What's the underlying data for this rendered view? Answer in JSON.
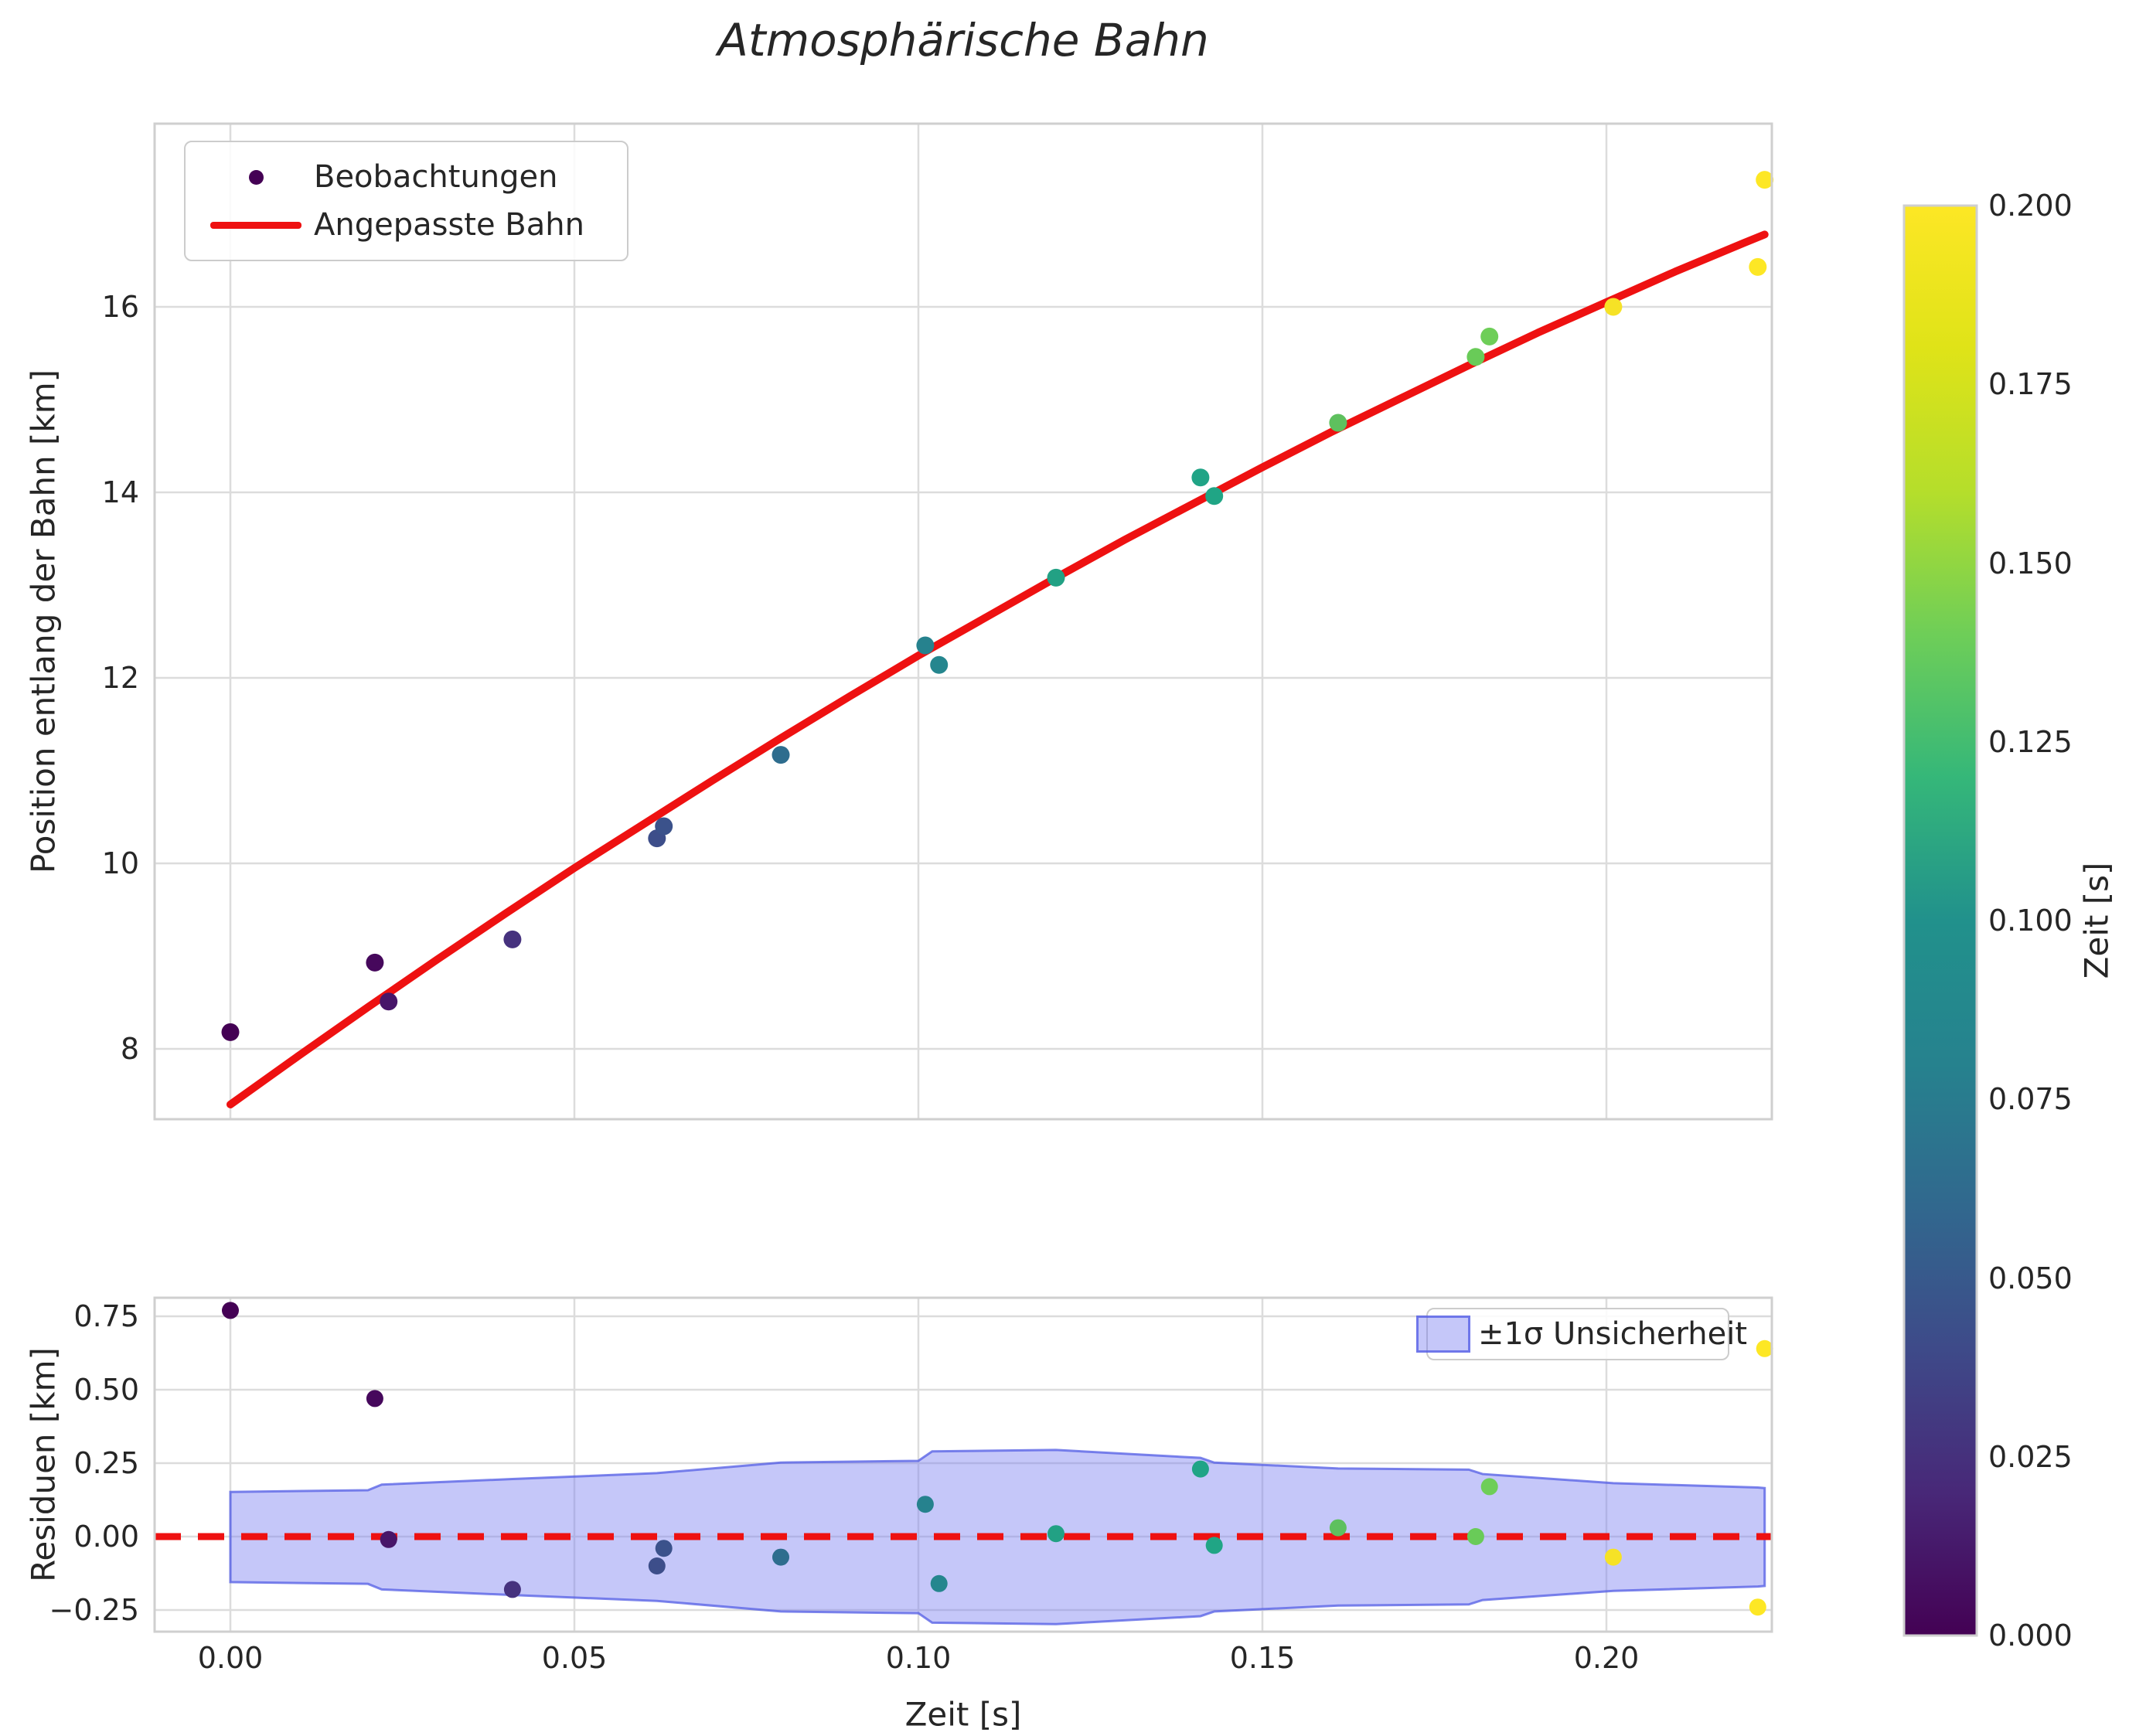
{
  "title": "Atmosphärische Bahn",
  "colors": {
    "fit_red": "#ee1111",
    "band_fill": "rgba(116,122,240,0.42)",
    "band_edge": "rgba(82,92,228,0.75)",
    "grid": "#dcdcdc",
    "spine": "#cfcfcf",
    "text": "#262626",
    "legend_marker": "#440154"
  },
  "main_plot": {
    "ylabel": "Position entlang der Bahn [km]",
    "ytick_labels": [
      "16",
      "14",
      "12",
      "10",
      "8"
    ],
    "ytick_values": [
      16,
      14,
      12,
      10,
      8
    ],
    "legend": {
      "observations": "Beobachtungen",
      "fitted": "Angepasste Bahn"
    }
  },
  "residual_plot": {
    "ylabel": "Residuen [km]",
    "xlabel": "Zeit [s]",
    "ytick_labels": [
      "0.75",
      "0.50",
      "0.25",
      "0.00",
      "−0.25"
    ],
    "ytick_values": [
      0.75,
      0.5,
      0.25,
      0.0,
      -0.25
    ],
    "xtick_labels": [
      "0.00",
      "0.05",
      "0.10",
      "0.15",
      "0.20"
    ],
    "xtick_values": [
      0.0,
      0.05,
      0.1,
      0.15,
      0.2
    ],
    "legend_label": "±1σ Unsicherheit"
  },
  "colorbar": {
    "label": "Zeit [s]",
    "tick_labels": [
      "0.000",
      "0.025",
      "0.050",
      "0.075",
      "0.100",
      "0.125",
      "0.150",
      "0.175",
      "0.200"
    ],
    "tick_values": [
      0.0,
      0.025,
      0.05,
      0.075,
      0.1,
      0.125,
      0.15,
      0.175,
      0.2
    ],
    "range": [
      0.0,
      0.2
    ],
    "colormap": "viridis",
    "gradient_stops": [
      [
        0.0,
        "#440154"
      ],
      [
        0.1,
        "#482878"
      ],
      [
        0.2,
        "#3e4a89"
      ],
      [
        0.3,
        "#31688e"
      ],
      [
        0.4,
        "#26828e"
      ],
      [
        0.5,
        "#21918c"
      ],
      [
        0.6,
        "#35b779"
      ],
      [
        0.7,
        "#6ece58"
      ],
      [
        0.8,
        "#b5de2b"
      ],
      [
        0.9,
        "#dfe318"
      ],
      [
        1.0,
        "#fde725"
      ]
    ]
  },
  "chart_data": [
    {
      "type": "scatter",
      "title": "Atmosphärische Bahn",
      "xlabel": "Zeit [s]",
      "ylabel": "Position entlang der Bahn [km]",
      "xlim": [
        -0.011,
        0.224
      ],
      "ylim": [
        7.22,
        17.98
      ],
      "grid": true,
      "legend_position": "upper left",
      "series": [
        {
          "name": "Beobachtungen",
          "type": "scatter",
          "color_by": "Zeit [s]",
          "colormap": "viridis",
          "points": [
            {
              "t": 0.0,
              "position_km": 8.18,
              "color": "#440154"
            },
            {
              "t": 0.021,
              "position_km": 8.93,
              "color": "#46085c"
            },
            {
              "t": 0.023,
              "position_km": 8.51,
              "color": "#471669"
            },
            {
              "t": 0.041,
              "position_km": 9.18,
              "color": "#46327e"
            },
            {
              "t": 0.062,
              "position_km": 10.27,
              "color": "#3d4e8a"
            },
            {
              "t": 0.063,
              "position_km": 10.4,
              "color": "#3b528b"
            },
            {
              "t": 0.08,
              "position_km": 11.17,
              "color": "#2e6d8e"
            },
            {
              "t": 0.101,
              "position_km": 12.35,
              "color": "#26828e"
            },
            {
              "t": 0.103,
              "position_km": 12.14,
              "color": "#25868e"
            },
            {
              "t": 0.12,
              "position_km": 13.08,
              "color": "#22a184"
            },
            {
              "t": 0.141,
              "position_km": 14.16,
              "color": "#20a486"
            },
            {
              "t": 0.143,
              "position_km": 13.96,
              "color": "#20a585"
            },
            {
              "t": 0.161,
              "position_km": 14.75,
              "color": "#5ec05e"
            },
            {
              "t": 0.181,
              "position_km": 15.46,
              "color": "#69cb58"
            },
            {
              "t": 0.183,
              "position_km": 15.68,
              "color": "#6ece58"
            },
            {
              "t": 0.201,
              "position_km": 16.0,
              "color": "#f6e226"
            },
            {
              "t": 0.222,
              "position_km": 16.43,
              "color": "#fde725"
            },
            {
              "t": 0.223,
              "position_km": 17.37,
              "color": "#fde725"
            }
          ]
        },
        {
          "name": "Angepasste Bahn",
          "type": "line",
          "color": "#ee1111",
          "points": [
            [
              0.0,
              7.4
            ],
            [
              0.01,
              7.93
            ],
            [
              0.02,
              8.45
            ],
            [
              0.03,
              8.96
            ],
            [
              0.04,
              9.46
            ],
            [
              0.05,
              9.95
            ],
            [
              0.06,
              10.42
            ],
            [
              0.07,
              10.89
            ],
            [
              0.08,
              11.35
            ],
            [
              0.09,
              11.8
            ],
            [
              0.1,
              12.24
            ],
            [
              0.11,
              12.66
            ],
            [
              0.12,
              13.08
            ],
            [
              0.13,
              13.49
            ],
            [
              0.14,
              13.88
            ],
            [
              0.15,
              14.27
            ],
            [
              0.16,
              14.65
            ],
            [
              0.17,
              15.01
            ],
            [
              0.18,
              15.37
            ],
            [
              0.19,
              15.72
            ],
            [
              0.2,
              16.05
            ],
            [
              0.21,
              16.38
            ],
            [
              0.22,
              16.69
            ],
            [
              0.223,
              16.78
            ]
          ]
        }
      ]
    },
    {
      "type": "scatter",
      "xlabel": "Zeit [s]",
      "ylabel": "Residuen [km]",
      "xlim": [
        -0.011,
        0.224
      ],
      "ylim": [
        -0.32,
        0.81
      ],
      "grid": true,
      "legend_position": "upper right",
      "series": [
        {
          "name": "Residuen",
          "type": "scatter",
          "points": [
            {
              "t": 0.0,
              "residual_km": 0.77,
              "color": "#440154"
            },
            {
              "t": 0.021,
              "residual_km": 0.47,
              "color": "#46085c"
            },
            {
              "t": 0.023,
              "residual_km": -0.01,
              "color": "#471669"
            },
            {
              "t": 0.041,
              "residual_km": -0.18,
              "color": "#46327e"
            },
            {
              "t": 0.062,
              "residual_km": -0.1,
              "color": "#3d4e8a"
            },
            {
              "t": 0.063,
              "residual_km": -0.04,
              "color": "#3b528b"
            },
            {
              "t": 0.08,
              "residual_km": -0.07,
              "color": "#2e6d8e"
            },
            {
              "t": 0.101,
              "residual_km": 0.11,
              "color": "#26828e"
            },
            {
              "t": 0.103,
              "residual_km": -0.16,
              "color": "#25868e"
            },
            {
              "t": 0.12,
              "residual_km": 0.01,
              "color": "#22a184"
            },
            {
              "t": 0.141,
              "residual_km": 0.23,
              "color": "#20a486"
            },
            {
              "t": 0.143,
              "residual_km": -0.03,
              "color": "#20a585"
            },
            {
              "t": 0.161,
              "residual_km": 0.03,
              "color": "#5ec05e"
            },
            {
              "t": 0.181,
              "residual_km": 0.0,
              "color": "#69cb58"
            },
            {
              "t": 0.183,
              "residual_km": 0.17,
              "color": "#6ece58"
            },
            {
              "t": 0.201,
              "residual_km": -0.07,
              "color": "#f6e226"
            },
            {
              "t": 0.222,
              "residual_km": -0.24,
              "color": "#fde725"
            },
            {
              "t": 0.223,
              "residual_km": 0.64,
              "color": "#fde725"
            }
          ]
        },
        {
          "name": "±1σ Unsicherheit",
          "type": "band",
          "points": [
            {
              "t": 0.0,
              "upper": 0.152,
              "lower": -0.155
            },
            {
              "t": 0.02,
              "upper": 0.158,
              "lower": -0.161
            },
            {
              "t": 0.022,
              "upper": 0.177,
              "lower": -0.18
            },
            {
              "t": 0.041,
              "upper": 0.196,
              "lower": -0.199
            },
            {
              "t": 0.062,
              "upper": 0.216,
              "lower": -0.219
            },
            {
              "t": 0.08,
              "upper": 0.252,
              "lower": -0.255
            },
            {
              "t": 0.1,
              "upper": 0.258,
              "lower": -0.261
            },
            {
              "t": 0.102,
              "upper": 0.29,
              "lower": -0.293
            },
            {
              "t": 0.12,
              "upper": 0.295,
              "lower": -0.298
            },
            {
              "t": 0.141,
              "upper": 0.268,
              "lower": -0.271
            },
            {
              "t": 0.143,
              "upper": 0.252,
              "lower": -0.255
            },
            {
              "t": 0.161,
              "upper": 0.232,
              "lower": -0.235
            },
            {
              "t": 0.18,
              "upper": 0.228,
              "lower": -0.231
            },
            {
              "t": 0.182,
              "upper": 0.213,
              "lower": -0.216
            },
            {
              "t": 0.201,
              "upper": 0.182,
              "lower": -0.185
            },
            {
              "t": 0.222,
              "upper": 0.167,
              "lower": -0.17
            },
            {
              "t": 0.223,
              "upper": 0.165,
              "lower": -0.168
            }
          ]
        },
        {
          "name": "Nulllinie",
          "type": "dashed-line",
          "y": 0.0,
          "color": "#ee1111"
        }
      ]
    }
  ]
}
